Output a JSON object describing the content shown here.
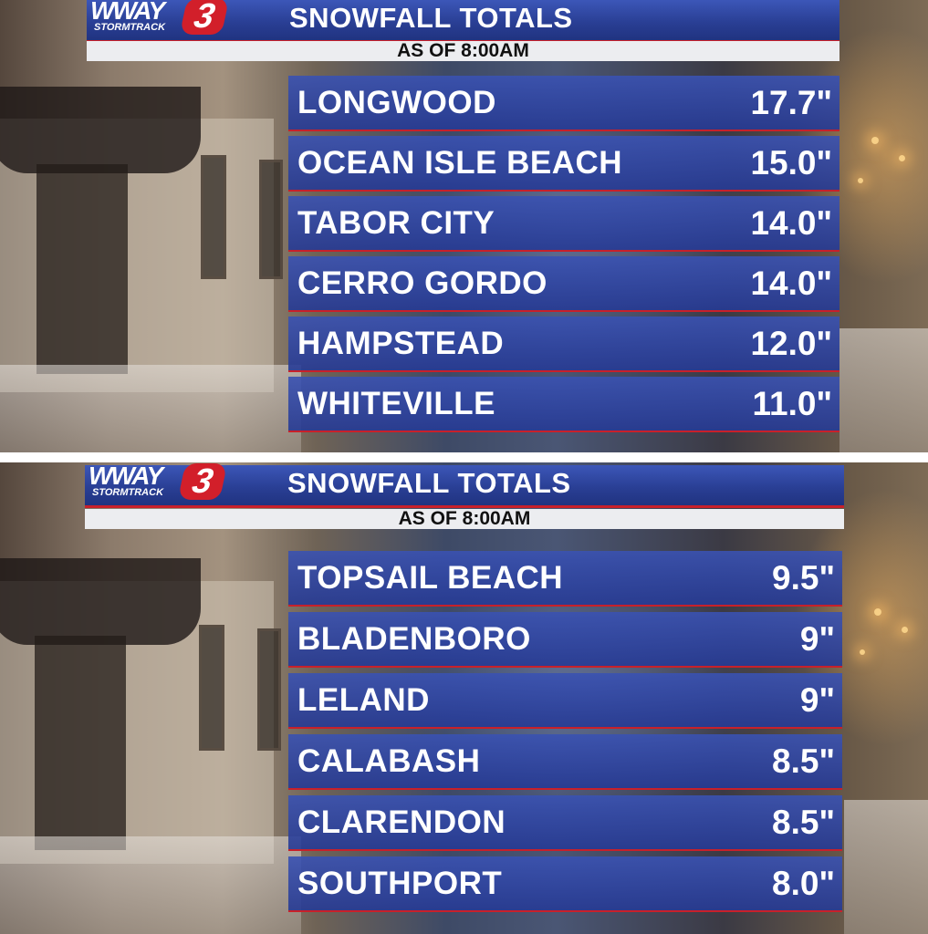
{
  "panels": [
    {
      "logo": {
        "brand": "WWAY",
        "sub": "STORMTRACK",
        "channel": "3"
      },
      "title": "SNOWFALL TOTALS",
      "subtitle": "AS OF 8:00AM",
      "rows": [
        {
          "name": "LONGWOOD",
          "value": "17.7\""
        },
        {
          "name": "OCEAN ISLE BEACH",
          "value": "15.0\""
        },
        {
          "name": "TABOR CITY",
          "value": "14.0\""
        },
        {
          "name": "CERRO GORDO",
          "value": "14.0\""
        },
        {
          "name": "HAMPSTEAD",
          "value": "12.0\""
        },
        {
          "name": "WHITEVILLE",
          "value": "11.0\""
        }
      ]
    },
    {
      "logo": {
        "brand": "WWAY",
        "sub": "STORMTRACK",
        "channel": "3"
      },
      "title": "SNOWFALL TOTALS",
      "subtitle": "AS OF 8:00AM",
      "rows": [
        {
          "name": "TOPSAIL BEACH",
          "value": "9.5\""
        },
        {
          "name": "BLADENBORO",
          "value": "9\""
        },
        {
          "name": "LELAND",
          "value": "9\""
        },
        {
          "name": "CALABASH",
          "value": "8.5\""
        },
        {
          "name": "CLARENDON",
          "value": "8.5\""
        },
        {
          "name": "SOUTHPORT",
          "value": "8.0\""
        }
      ]
    }
  ],
  "colors": {
    "header_blue": "#2a3f95",
    "row_blue": "#3a52b2",
    "accent_red": "#c8202a",
    "subheader_bg": "#ecedf0"
  }
}
